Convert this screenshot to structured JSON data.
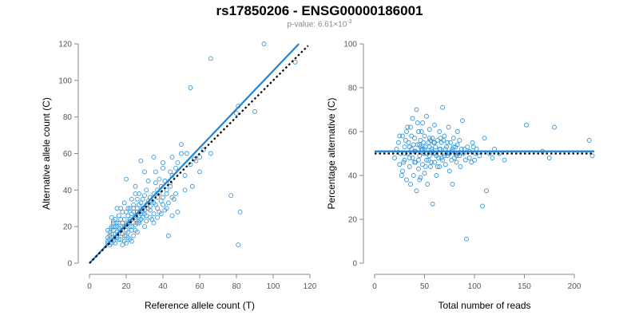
{
  "title": "rs17850206 - ENSG00000186001",
  "subtitle": {
    "prefix": "p-value: 6.61",
    "times": "×10",
    "exponent": "-3"
  },
  "colors": {
    "points": "#3a9ad9",
    "fit": "#1f84d6",
    "reference": "#000000",
    "axis": "#888888"
  },
  "chart_data": [
    {
      "type": "scatter",
      "xlabel": "Reference allele count (T)",
      "ylabel": "Alternative allele count (C)",
      "xlim": [
        0,
        120
      ],
      "ylim": [
        0,
        120
      ],
      "xticks": [
        0,
        20,
        40,
        60,
        80,
        100,
        120
      ],
      "yticks": [
        0,
        20,
        40,
        60,
        80,
        100,
        120
      ],
      "grid": false,
      "fit_line": {
        "x": [
          0,
          114
        ],
        "y": [
          0,
          120
        ]
      },
      "reference_line": {
        "x": [
          0,
          119
        ],
        "y": [
          0,
          119
        ]
      },
      "points": [
        [
          10,
          12
        ],
        [
          11,
          15
        ],
        [
          10,
          18
        ],
        [
          12,
          20
        ],
        [
          13,
          22
        ],
        [
          12,
          11
        ],
        [
          14,
          14
        ],
        [
          15,
          17
        ],
        [
          16,
          19
        ],
        [
          15,
          22
        ],
        [
          17,
          24
        ],
        [
          18,
          16
        ],
        [
          19,
          12
        ],
        [
          20,
          21
        ],
        [
          21,
          26
        ],
        [
          22,
          23
        ],
        [
          23,
          18
        ],
        [
          24,
          28
        ],
        [
          25,
          25
        ],
        [
          26,
          30
        ],
        [
          20,
          15
        ],
        [
          22,
          20
        ],
        [
          24,
          32
        ],
        [
          26,
          22
        ],
        [
          28,
          27
        ],
        [
          30,
          29
        ],
        [
          32,
          34
        ],
        [
          31,
          40
        ],
        [
          29,
          35
        ],
        [
          27,
          38
        ],
        [
          33,
          31
        ],
        [
          35,
          33
        ],
        [
          37,
          36
        ],
        [
          38,
          28
        ],
        [
          40,
          32
        ],
        [
          42,
          38
        ],
        [
          41,
          45
        ],
        [
          44,
          42
        ],
        [
          45,
          48
        ],
        [
          46,
          35
        ],
        [
          48,
          55
        ],
        [
          50,
          60
        ],
        [
          52,
          48
        ],
        [
          55,
          54
        ],
        [
          57,
          57
        ],
        [
          60,
          58
        ],
        [
          62,
          62
        ],
        [
          66,
          60
        ],
        [
          50,
          65
        ],
        [
          30,
          50
        ],
        [
          28,
          56
        ],
        [
          35,
          58
        ],
        [
          40,
          52
        ],
        [
          44,
          50
        ],
        [
          36,
          44
        ],
        [
          38,
          46
        ],
        [
          34,
          24
        ],
        [
          30,
          20
        ],
        [
          27,
          22
        ],
        [
          25,
          18
        ],
        [
          23,
          12
        ],
        [
          21,
          14
        ],
        [
          19,
          20
        ],
        [
          18,
          22
        ],
        [
          16,
          26
        ],
        [
          14,
          24
        ],
        [
          13,
          18
        ],
        [
          12,
          16
        ],
        [
          11,
          13
        ],
        [
          12,
          25
        ],
        [
          15,
          30
        ],
        [
          17,
          30
        ],
        [
          19,
          33
        ],
        [
          21,
          30
        ],
        [
          23,
          35
        ],
        [
          25,
          38
        ],
        [
          27,
          32
        ],
        [
          29,
          28
        ],
        [
          31,
          26
        ],
        [
          33,
          29
        ],
        [
          35,
          27
        ],
        [
          37,
          30
        ],
        [
          39,
          34
        ],
        [
          42,
          30
        ],
        [
          45,
          26
        ],
        [
          48,
          28
        ],
        [
          43,
          15
        ],
        [
          52,
          40
        ],
        [
          56,
          42
        ],
        [
          47,
          38
        ],
        [
          20,
          46
        ],
        [
          25,
          42
        ],
        [
          32,
          45
        ],
        [
          36,
          50
        ],
        [
          40,
          55
        ],
        [
          45,
          58
        ],
        [
          55,
          96
        ],
        [
          66,
          112
        ],
        [
          81,
          86
        ],
        [
          80,
          82
        ],
        [
          77,
          37
        ],
        [
          82,
          28
        ],
        [
          81,
          10
        ],
        [
          90,
          83
        ],
        [
          95,
          120
        ],
        [
          112,
          110
        ],
        [
          60,
          50
        ],
        [
          58,
          56
        ],
        [
          53,
          60
        ],
        [
          47,
          52
        ],
        [
          18,
          10
        ],
        [
          20,
          11
        ],
        [
          22,
          13
        ],
        [
          24,
          15
        ],
        [
          26,
          17
        ],
        [
          14,
          11
        ],
        [
          16,
          13
        ],
        [
          15,
          20
        ],
        [
          17,
          18
        ],
        [
          19,
          24
        ],
        [
          21,
          22
        ],
        [
          23,
          27
        ],
        [
          25,
          24
        ],
        [
          27,
          26
        ],
        [
          29,
          30
        ],
        [
          31,
          32
        ],
        [
          33,
          36
        ],
        [
          35,
          38
        ],
        [
          37,
          40
        ],
        [
          39,
          42
        ],
        [
          13,
          20
        ],
        [
          16,
          16
        ],
        [
          18,
          20
        ],
        [
          20,
          18
        ],
        [
          22,
          24
        ],
        [
          24,
          22
        ],
        [
          26,
          28
        ],
        [
          28,
          24
        ],
        [
          30,
          27
        ],
        [
          32,
          30
        ],
        [
          34,
          34
        ],
        [
          36,
          32
        ],
        [
          38,
          38
        ],
        [
          40,
          36
        ],
        [
          42,
          40
        ],
        [
          44,
          44
        ],
        [
          30,
          37
        ],
        [
          28,
          33
        ],
        [
          26,
          35
        ],
        [
          24,
          30
        ],
        [
          11,
          10
        ],
        [
          13,
          12
        ],
        [
          15,
          14
        ],
        [
          17,
          13
        ],
        [
          19,
          15
        ],
        [
          21,
          17
        ],
        [
          23,
          20
        ],
        [
          25,
          21
        ],
        [
          27,
          23
        ],
        [
          29,
          25
        ],
        [
          31,
          23
        ],
        [
          33,
          25
        ],
        [
          35,
          22
        ],
        [
          37,
          25
        ],
        [
          39,
          27
        ],
        [
          41,
          29
        ],
        [
          43,
          33
        ],
        [
          45,
          36
        ],
        [
          20,
          28
        ],
        [
          22,
          30
        ],
        [
          18,
          28
        ],
        [
          16,
          22
        ],
        [
          14,
          16
        ],
        [
          12,
          14
        ],
        [
          10,
          11
        ],
        [
          10,
          14
        ],
        [
          11,
          17
        ],
        [
          12,
          19
        ],
        [
          13,
          23
        ],
        [
          14,
          20
        ]
      ]
    },
    {
      "type": "scatter",
      "xlabel": "Total number of reads",
      "ylabel": "Percentage alternative (C)",
      "xlim": [
        0,
        220
      ],
      "ylim": [
        0,
        100
      ],
      "xticks": [
        0,
        50,
        100,
        150,
        200
      ],
      "yticks": [
        0,
        20,
        40,
        60,
        80,
        100
      ],
      "grid": false,
      "fit_line": {
        "x": [
          0,
          220
        ],
        "y": [
          51,
          51
        ]
      },
      "reference_line": {
        "x": [
          0,
          220
        ],
        "y": [
          50,
          50
        ]
      },
      "points": [
        [
          20,
          48
        ],
        [
          22,
          52
        ],
        [
          24,
          55
        ],
        [
          25,
          45
        ],
        [
          26,
          50
        ],
        [
          28,
          58
        ],
        [
          28,
          42
        ],
        [
          30,
          53
        ],
        [
          30,
          47
        ],
        [
          32,
          60
        ],
        [
          32,
          38
        ],
        [
          33,
          50
        ],
        [
          34,
          55
        ],
        [
          35,
          44
        ],
        [
          36,
          62
        ],
        [
          36,
          36
        ],
        [
          37,
          52
        ],
        [
          38,
          48
        ],
        [
          38,
          66
        ],
        [
          39,
          40
        ],
        [
          40,
          57
        ],
        [
          40,
          46
        ],
        [
          41,
          51
        ],
        [
          42,
          70
        ],
        [
          42,
          33
        ],
        [
          43,
          54
        ],
        [
          44,
          43
        ],
        [
          44,
          60
        ],
        [
          45,
          49
        ],
        [
          46,
          56
        ],
        [
          46,
          39
        ],
        [
          47,
          52
        ],
        [
          48,
          45
        ],
        [
          48,
          64
        ],
        [
          49,
          50
        ],
        [
          50,
          58
        ],
        [
          50,
          41
        ],
        [
          51,
          53
        ],
        [
          52,
          47
        ],
        [
          52,
          67
        ],
        [
          53,
          36
        ],
        [
          54,
          55
        ],
        [
          55,
          49
        ],
        [
          55,
          61
        ],
        [
          56,
          44
        ],
        [
          57,
          52
        ],
        [
          58,
          57
        ],
        [
          58,
          27
        ],
        [
          59,
          50
        ],
        [
          60,
          46
        ],
        [
          60,
          63
        ],
        [
          61,
          53
        ],
        [
          62,
          40
        ],
        [
          63,
          56
        ],
        [
          64,
          48
        ],
        [
          65,
          60
        ],
        [
          65,
          44
        ],
        [
          66,
          52
        ],
        [
          67,
          55
        ],
        [
          68,
          47
        ],
        [
          68,
          71
        ],
        [
          69,
          50
        ],
        [
          70,
          58
        ],
        [
          71,
          45
        ],
        [
          72,
          53
        ],
        [
          73,
          49
        ],
        [
          74,
          62
        ],
        [
          75,
          42
        ],
        [
          76,
          55
        ],
        [
          77,
          51
        ],
        [
          78,
          36
        ],
        [
          79,
          57
        ],
        [
          80,
          48
        ],
        [
          81,
          53
        ],
        [
          82,
          46
        ],
        [
          83,
          60
        ],
        [
          84,
          50
        ],
        [
          85,
          56
        ],
        [
          86,
          44
        ],
        [
          88,
          65
        ],
        [
          90,
          52
        ],
        [
          92,
          11
        ],
        [
          95,
          48
        ],
        [
          98,
          55
        ],
        [
          100,
          47
        ],
        [
          102,
          52
        ],
        [
          105,
          49
        ],
        [
          108,
          26
        ],
        [
          110,
          57
        ],
        [
          112,
          33
        ],
        [
          115,
          50
        ],
        [
          118,
          48
        ],
        [
          120,
          52
        ],
        [
          125,
          50
        ],
        [
          130,
          47
        ],
        [
          152,
          63
        ],
        [
          168,
          51
        ],
        [
          175,
          48
        ],
        [
          180,
          62
        ],
        [
          215,
          56
        ],
        [
          218,
          49
        ],
        [
          25,
          58
        ],
        [
          27,
          40
        ],
        [
          29,
          46
        ],
        [
          31,
          56
        ],
        [
          33,
          62
        ],
        [
          35,
          48
        ],
        [
          37,
          58
        ],
        [
          39,
          54
        ],
        [
          41,
          46
        ],
        [
          43,
          64
        ],
        [
          45,
          38
        ],
        [
          47,
          60
        ],
        [
          49,
          55
        ],
        [
          51,
          44
        ],
        [
          53,
          50
        ],
        [
          55,
          53
        ],
        [
          57,
          46
        ],
        [
          59,
          55
        ],
        [
          61,
          50
        ],
        [
          63,
          44
        ],
        [
          65,
          52
        ],
        [
          67,
          48
        ],
        [
          69,
          56
        ],
        [
          71,
          52
        ],
        [
          73,
          55
        ],
        [
          75,
          50
        ],
        [
          77,
          47
        ],
        [
          79,
          53
        ],
        [
          81,
          50
        ],
        [
          83,
          54
        ],
        [
          85,
          49
        ],
        [
          87,
          52
        ],
        [
          89,
          50
        ],
        [
          91,
          47
        ],
        [
          93,
          53
        ],
        [
          95,
          51
        ],
        [
          97,
          46
        ],
        [
          99,
          53
        ],
        [
          101,
          50
        ],
        [
          45,
          54
        ],
        [
          50,
          52
        ],
        [
          55,
          57
        ],
        [
          60,
          55
        ],
        [
          40,
          51
        ],
        [
          35,
          53
        ],
        [
          30,
          50
        ],
        [
          48,
          52
        ],
        [
          52,
          50
        ],
        [
          58,
          51
        ],
        [
          62,
          49
        ],
        [
          66,
          57
        ],
        [
          70,
          49
        ],
        [
          74,
          50
        ],
        [
          78,
          52
        ],
        [
          82,
          49
        ],
        [
          44,
          47
        ],
        [
          46,
          53
        ],
        [
          54,
          47
        ],
        [
          56,
          56
        ]
      ]
    }
  ]
}
